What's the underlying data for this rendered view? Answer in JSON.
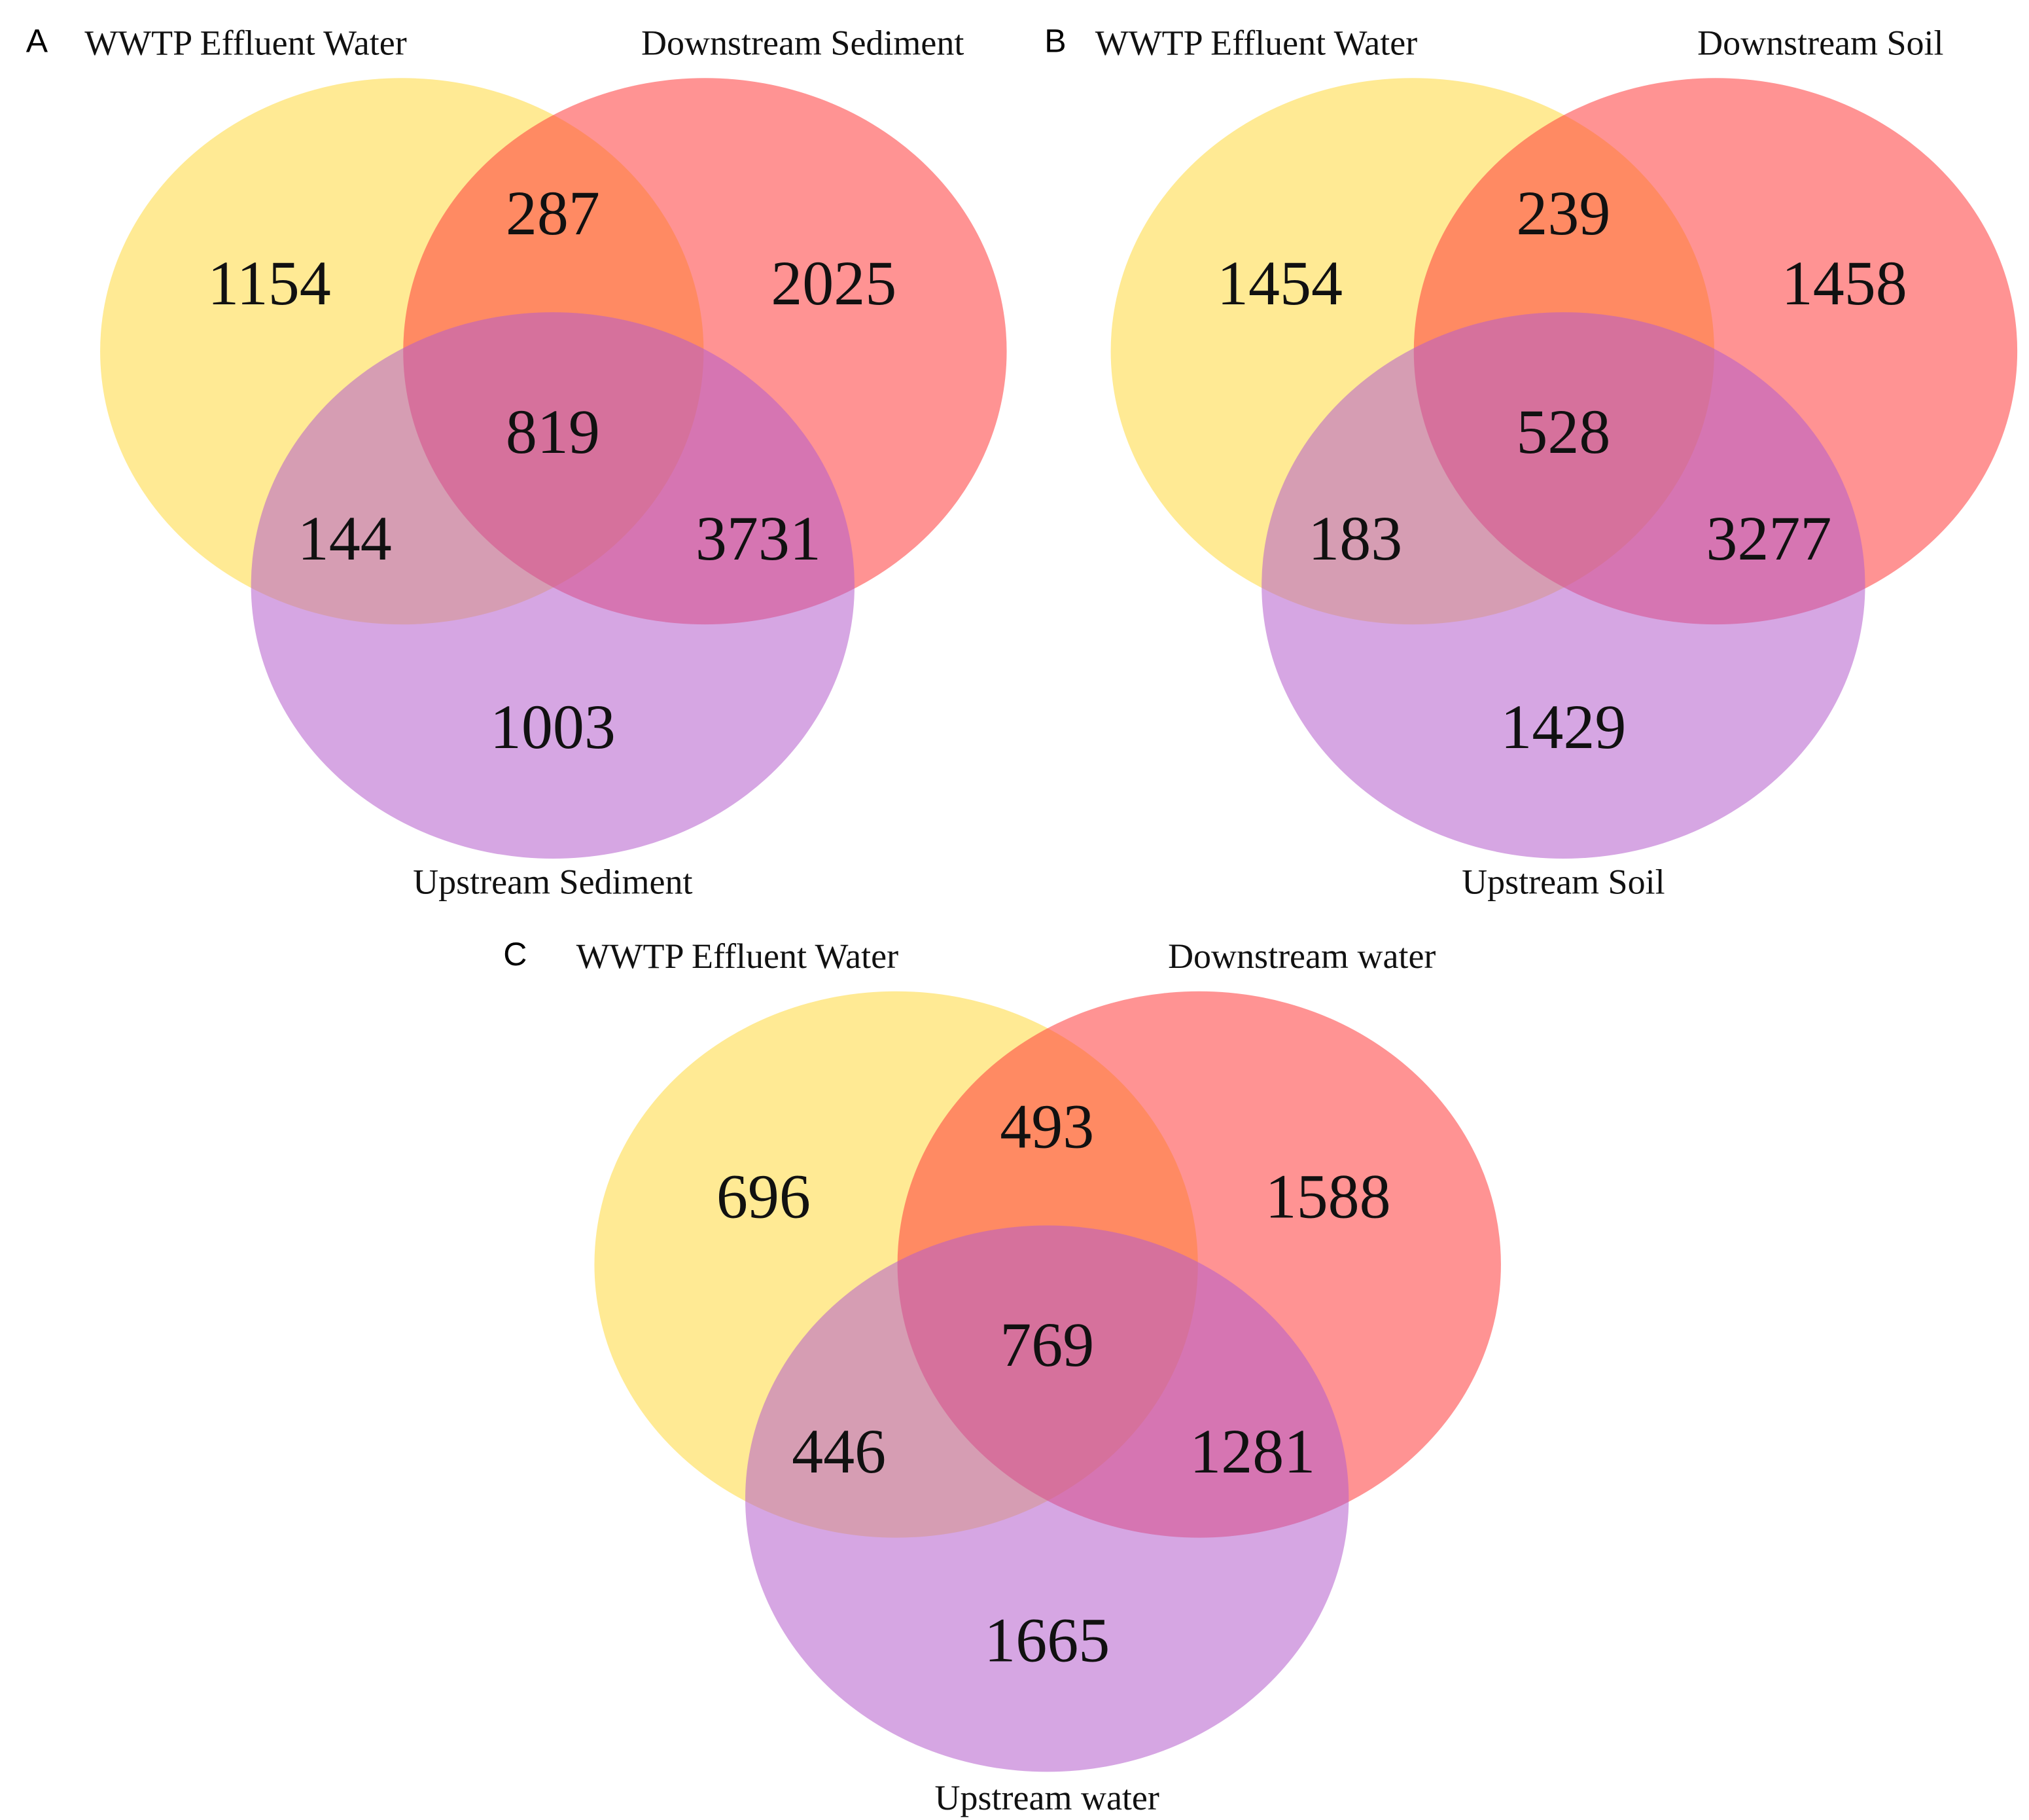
{
  "colors": {
    "set_a": "#FFD93D",
    "set_b": "#FF3B3B",
    "set_c": "#B55DCC",
    "background": "#FFFFFF"
  },
  "diagrams": [
    {
      "letter": "A",
      "labels": {
        "a": "WWTP Effluent Water",
        "b": "Downstream Sediment",
        "c": "Upstream Sediment"
      },
      "counts": {
        "a_only": "1154",
        "b_only": "2025",
        "c_only": "1003",
        "ab": "287",
        "ac": "144",
        "bc": "3731",
        "abc": "819"
      }
    },
    {
      "letter": "B",
      "labels": {
        "a": "WWTP Effluent Water",
        "b": "Downstream Soil",
        "c": "Upstream Soil"
      },
      "counts": {
        "a_only": "1454",
        "b_only": "1458",
        "c_only": "1429",
        "ab": "239",
        "ac": "183",
        "bc": "3277",
        "abc": "528"
      }
    },
    {
      "letter": "C",
      "labels": {
        "a": "WWTP Effluent Water",
        "b": "Downstream water",
        "c": "Upstream water"
      },
      "counts": {
        "a_only": "696",
        "b_only": "1588",
        "c_only": "1665",
        "ab": "493",
        "ac": "446",
        "bc": "1281",
        "abc": "769"
      }
    }
  ]
}
